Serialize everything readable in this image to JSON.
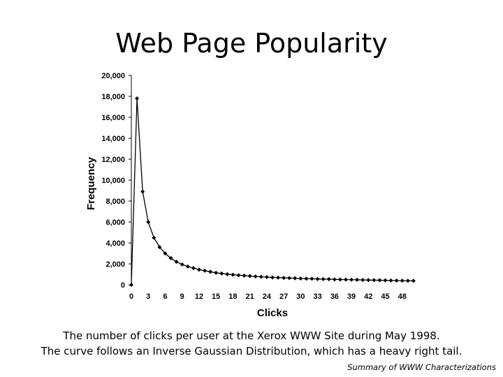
{
  "slide": {
    "title": "Web Page Popularity",
    "caption_line1": "The number of clicks per user at the Xerox WWW Site during May 1998.",
    "caption_line2": "The curve follows an Inverse Gaussian Distribution, which has a heavy right tail.",
    "source": "Summary of WWW Characterizations"
  },
  "chart_data": {
    "type": "line",
    "title": "",
    "xlabel": "Clicks",
    "ylabel": "Frequency",
    "xlim": [
      0,
      51
    ],
    "ylim": [
      0,
      20000
    ],
    "x_ticks": [
      0,
      3,
      6,
      9,
      12,
      15,
      18,
      21,
      24,
      27,
      30,
      33,
      36,
      39,
      42,
      45,
      48
    ],
    "y_ticks": [
      "0",
      "2,000",
      "4,000",
      "6,000",
      "8,000",
      "10,000",
      "12,000",
      "14,000",
      "16,000",
      "18,000",
      "20,000"
    ],
    "y_tick_values": [
      0,
      2000,
      4000,
      6000,
      8000,
      10000,
      12000,
      14000,
      16000,
      18000,
      20000
    ],
    "grid": false,
    "marker": "diamond",
    "color": "#000000",
    "x": [
      0,
      1,
      2,
      3,
      4,
      5,
      6,
      7,
      8,
      9,
      10,
      11,
      12,
      13,
      14,
      15,
      16,
      17,
      18,
      19,
      20,
      21,
      22,
      23,
      24,
      25,
      26,
      27,
      28,
      29,
      30,
      31,
      32,
      33,
      34,
      35,
      36,
      37,
      38,
      39,
      40,
      41,
      42,
      43,
      44,
      45,
      46,
      47,
      48,
      49,
      50
    ],
    "y": [
      0,
      17800,
      8900,
      6000,
      4500,
      3600,
      3000,
      2550,
      2200,
      1950,
      1750,
      1600,
      1450,
      1350,
      1250,
      1150,
      1080,
      1020,
      970,
      920,
      880,
      840,
      800,
      770,
      740,
      710,
      690,
      670,
      650,
      630,
      610,
      590,
      580,
      560,
      550,
      540,
      520,
      510,
      500,
      490,
      480,
      470,
      460,
      450,
      440,
      430,
      420,
      410,
      400,
      390,
      380
    ]
  }
}
